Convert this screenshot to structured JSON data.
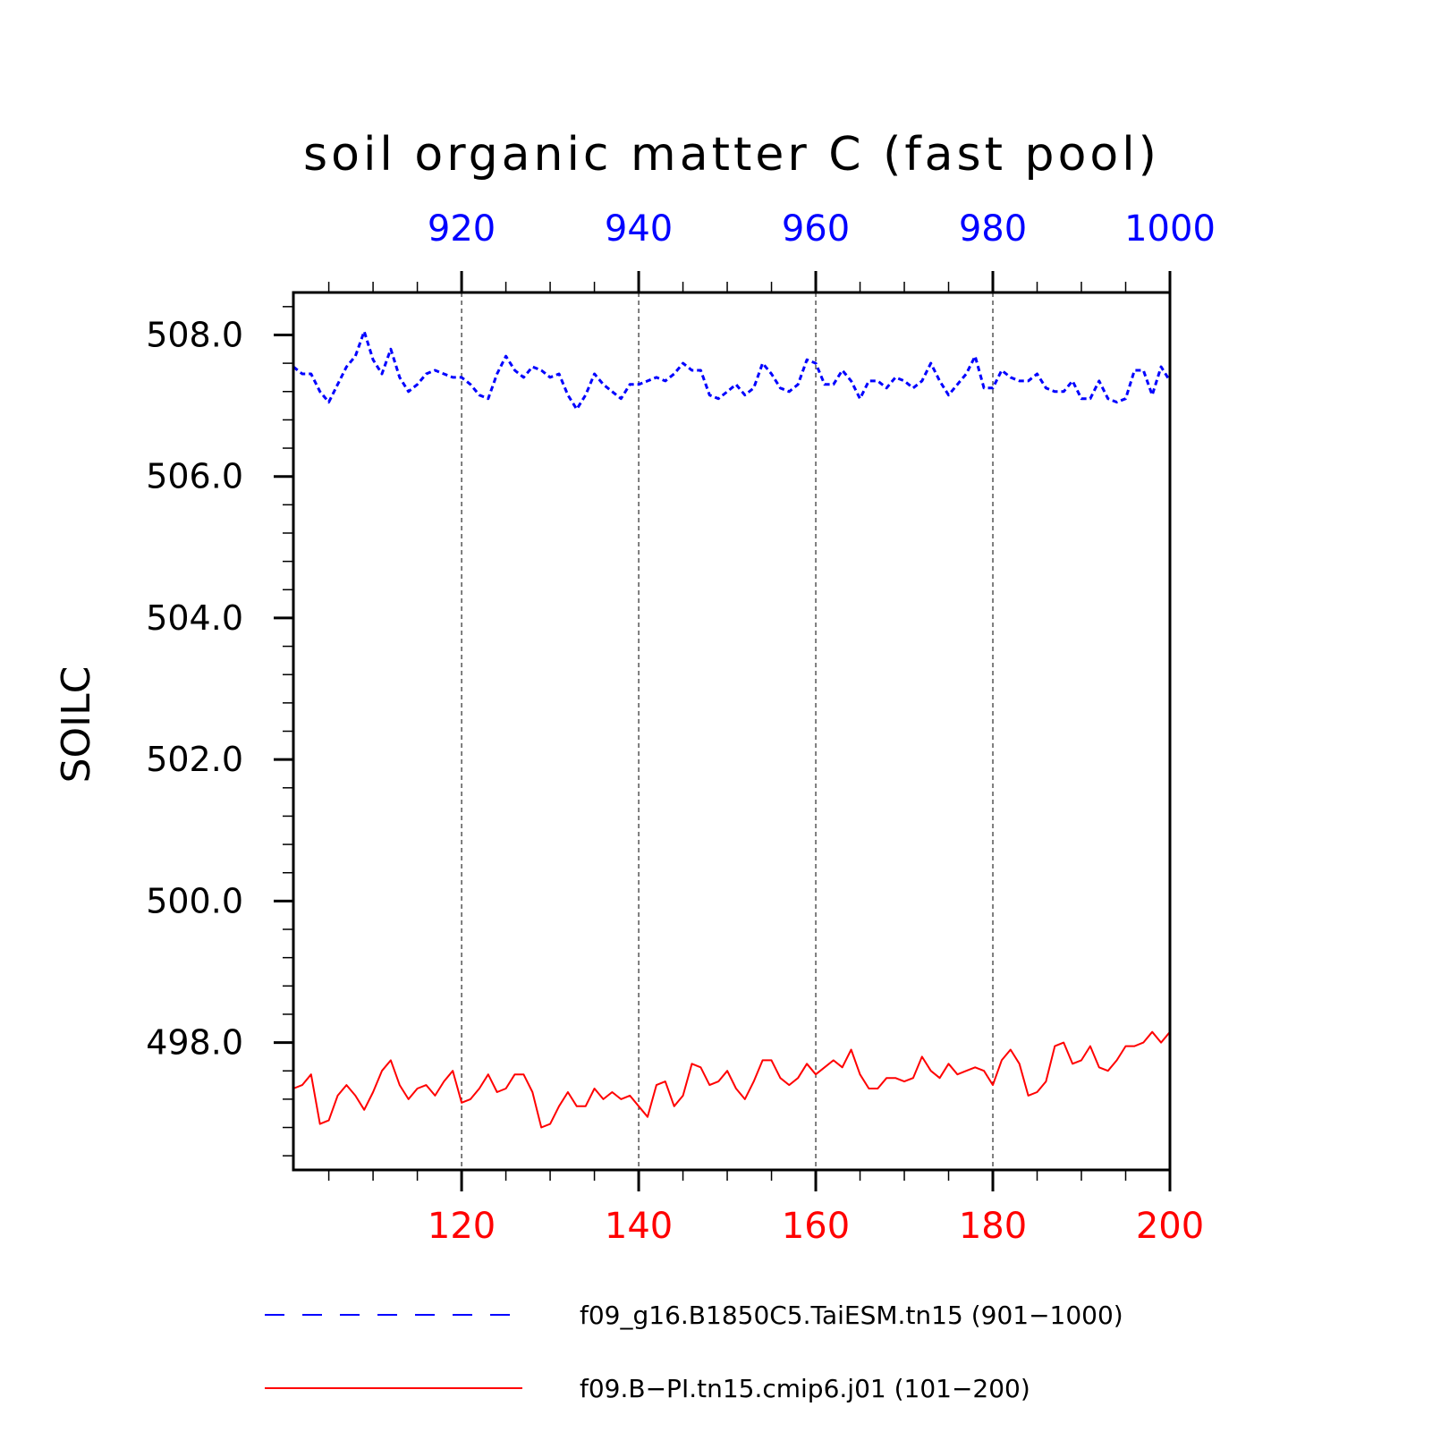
{
  "chart_data": {
    "type": "line",
    "title": "soil organic matter C (fast pool)",
    "ylabel": "SOILC",
    "ylim": [
      496.2,
      508.6
    ],
    "yticks": [
      498.0,
      500.0,
      502.0,
      504.0,
      506.0,
      508.0
    ],
    "ytick_labels": [
      "498.0",
      "500.0",
      "502.0",
      "504.0",
      "506.0",
      "508.0"
    ],
    "grid_x": "dashed",
    "x_top": {
      "range": [
        901,
        1000
      ],
      "ticks": [
        920,
        940,
        960,
        980,
        1000
      ],
      "tick_labels": [
        "920",
        "940",
        "960",
        "980",
        "1000"
      ],
      "color": "#0000ff"
    },
    "x_bottom": {
      "range": [
        101,
        200
      ],
      "ticks": [
        120,
        140,
        160,
        180,
        200
      ],
      "tick_labels": [
        "120",
        "140",
        "160",
        "180",
        "200"
      ],
      "color": "#ff0000"
    },
    "legend_placement": "bottom",
    "series": [
      {
        "name": "f09_g16.B1850C5.TaiESM.tn15 (901−1000)",
        "axis": "top",
        "color": "#0000ff",
        "style": "dashed",
        "x_start": 901,
        "values": [
          507.55,
          507.45,
          507.45,
          507.2,
          507.05,
          507.3,
          507.55,
          507.7,
          508.05,
          507.65,
          507.45,
          507.8,
          507.4,
          507.2,
          507.3,
          507.45,
          507.5,
          507.45,
          507.4,
          507.4,
          507.3,
          507.15,
          507.1,
          507.45,
          507.7,
          507.5,
          507.4,
          507.55,
          507.5,
          507.4,
          507.45,
          507.15,
          506.95,
          507.15,
          507.45,
          507.3,
          507.2,
          507.1,
          507.3,
          507.3,
          507.35,
          507.4,
          507.35,
          507.45,
          507.6,
          507.5,
          507.5,
          507.15,
          507.1,
          507.2,
          507.3,
          507.15,
          507.25,
          507.6,
          507.45,
          507.25,
          507.2,
          507.3,
          507.65,
          507.6,
          507.3,
          507.3,
          507.5,
          507.35,
          507.1,
          507.35,
          507.35,
          507.25,
          507.4,
          507.35,
          507.25,
          507.35,
          507.6,
          507.35,
          507.15,
          507.3,
          507.45,
          507.7,
          507.25,
          507.25,
          507.5,
          507.4,
          507.35,
          507.35,
          507.45,
          507.25,
          507.2,
          507.2,
          507.35,
          507.1,
          507.1,
          507.35,
          507.1,
          507.05,
          507.1,
          507.5,
          507.5,
          507.15,
          507.55,
          507.35
        ]
      },
      {
        "name": "f09.B−PI.tn15.cmip6.j01 (101−200)",
        "axis": "bottom",
        "color": "#ff0000",
        "style": "solid",
        "x_start": 101,
        "values": [
          497.35,
          497.4,
          497.55,
          496.85,
          496.9,
          497.25,
          497.4,
          497.25,
          497.05,
          497.3,
          497.6,
          497.75,
          497.4,
          497.2,
          497.35,
          497.4,
          497.25,
          497.45,
          497.6,
          497.15,
          497.2,
          497.35,
          497.55,
          497.3,
          497.35,
          497.55,
          497.55,
          497.3,
          496.8,
          496.85,
          497.1,
          497.3,
          497.1,
          497.1,
          497.35,
          497.2,
          497.3,
          497.2,
          497.25,
          497.1,
          496.95,
          497.4,
          497.45,
          497.1,
          497.25,
          497.7,
          497.65,
          497.4,
          497.45,
          497.6,
          497.35,
          497.2,
          497.45,
          497.75,
          497.75,
          497.5,
          497.4,
          497.5,
          497.7,
          497.55,
          497.65,
          497.75,
          497.65,
          497.9,
          497.55,
          497.35,
          497.35,
          497.5,
          497.5,
          497.45,
          497.5,
          497.8,
          497.6,
          497.5,
          497.7,
          497.55,
          497.6,
          497.65,
          497.6,
          497.4,
          497.75,
          497.9,
          497.7,
          497.25,
          497.3,
          497.45,
          497.95,
          498.0,
          497.7,
          497.75,
          497.95,
          497.65,
          497.6,
          497.75,
          497.95,
          497.95,
          498.0,
          498.15,
          498.0,
          498.15
        ]
      }
    ]
  }
}
